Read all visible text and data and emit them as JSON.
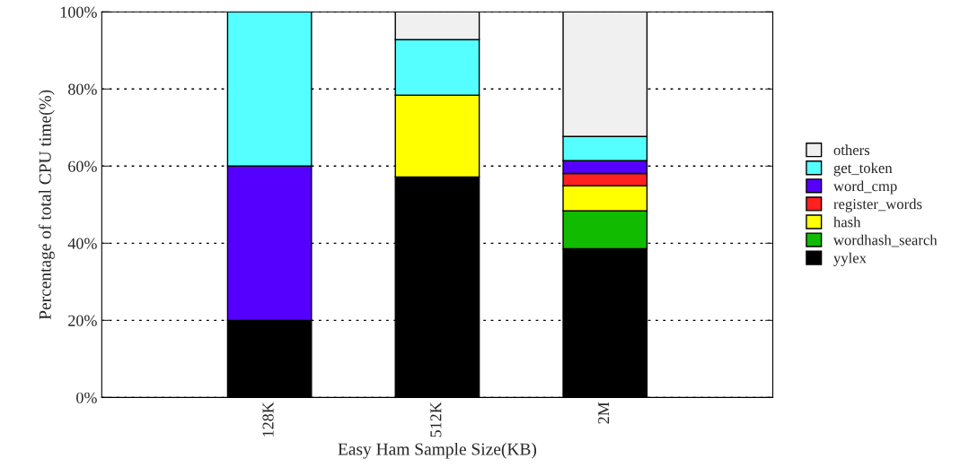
{
  "chart_data": {
    "type": "bar",
    "stacked": true,
    "xlabel": "Easy Ham Sample Size(KB)",
    "ylabel": "Percentage of total CPU time(%)",
    "categories": [
      "128K",
      "512K",
      "2M"
    ],
    "series": [
      {
        "name": "yylex",
        "color": "#000000",
        "values": [
          20,
          57.2,
          38.6
        ]
      },
      {
        "name": "wordhash_search",
        "color": "#11bb00",
        "values": [
          null,
          null,
          9.8
        ]
      },
      {
        "name": "hash",
        "color": "#ffff00",
        "values": [
          null,
          21.2,
          6.5
        ]
      },
      {
        "name": "register_words",
        "color": "#ff2020",
        "values": [
          null,
          null,
          3.2
        ]
      },
      {
        "name": "word_cmp",
        "color": "#5500ff",
        "values": [
          40,
          null,
          3.3
        ]
      },
      {
        "name": "get_token",
        "color": "#55ffff",
        "values": [
          40,
          14.4,
          6.3
        ]
      },
      {
        "name": "others",
        "color": "#f0f0f0",
        "values": [
          null,
          7.2,
          32.3
        ]
      }
    ],
    "ylim": [
      0,
      100
    ],
    "yticks": [
      {
        "value": 0,
        "label": "0%"
      },
      {
        "value": 20,
        "label": "20%"
      },
      {
        "value": 40,
        "label": "40%"
      },
      {
        "value": 60,
        "label": "60%"
      },
      {
        "value": 80,
        "label": "80%"
      },
      {
        "value": 100,
        "label": "100%"
      }
    ],
    "grid": "y",
    "legend": "right"
  }
}
